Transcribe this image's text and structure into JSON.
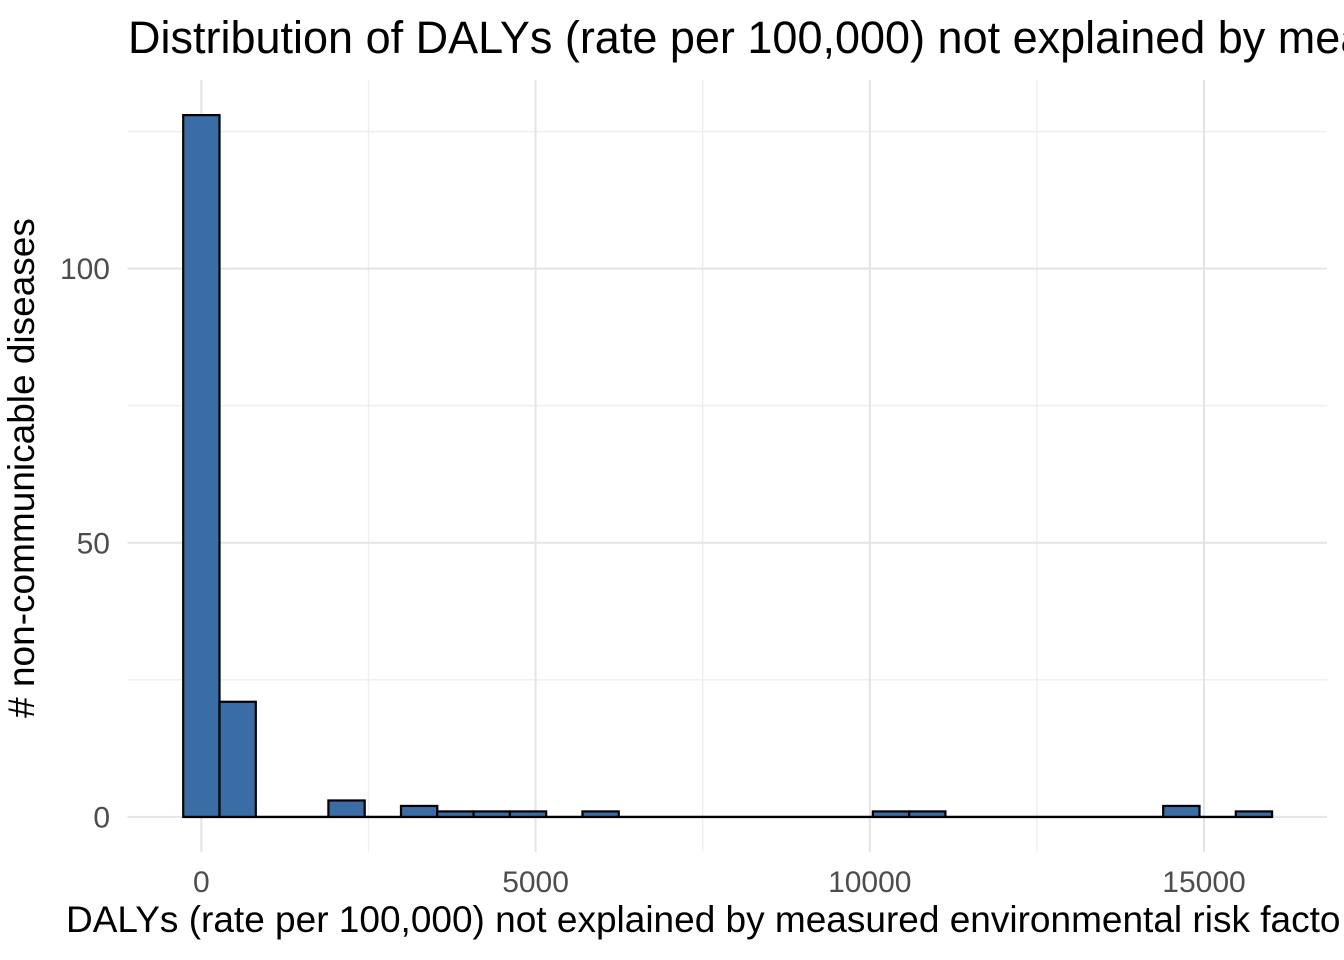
{
  "chart_data": {
    "type": "bar",
    "subtype": "histogram",
    "title": "Distribution of DALYs (rate per 100,000) not explained by mea",
    "xlabel": "DALYs (rate per 100,000) not explained by measured environmental risk facto",
    "ylabel": "# non-communicable diseases",
    "bin_width": 543,
    "first_bin_center": 0,
    "bin_centers": [
      0,
      543,
      1086,
      1629,
      2172,
      2715,
      3258,
      3801,
      4344,
      4887,
      5430,
      5973,
      6516,
      7059,
      7602,
      8145,
      8688,
      9231,
      9774,
      10317,
      10860,
      11403,
      11946,
      12489,
      13032,
      13575,
      14118,
      14661,
      15204,
      15747
    ],
    "counts": [
      128,
      21,
      0,
      0,
      3,
      0,
      2,
      1,
      1,
      1,
      0,
      1,
      0,
      0,
      0,
      0,
      0,
      0,
      0,
      1,
      1,
      0,
      0,
      0,
      0,
      0,
      0,
      2,
      0,
      1
    ],
    "xlim": [
      -1105,
      16840
    ],
    "ylim": [
      -6.4,
      134.4
    ],
    "x_major_ticks": [
      {
        "value": 0,
        "label": "0"
      },
      {
        "value": 5000,
        "label": "5000"
      },
      {
        "value": 10000,
        "label": "10000"
      },
      {
        "value": 15000,
        "label": "15000"
      }
    ],
    "x_minor_ticks": [
      2500,
      7500,
      12500
    ],
    "y_major_ticks": [
      {
        "value": 0,
        "label": "0"
      },
      {
        "value": 50,
        "label": "50"
      },
      {
        "value": 100,
        "label": "100"
      }
    ],
    "y_minor_ticks": [
      25,
      75,
      125
    ],
    "grid": "on",
    "legend": "none",
    "colors": {
      "bar_fill": "#3A6DA6",
      "bar_stroke": "#000000",
      "grid_major": "#e4e4e4",
      "grid_minor": "#eeeeee",
      "tick_label": "#4d4d4d",
      "title_text": "#000000",
      "background": "#ffffff"
    }
  }
}
